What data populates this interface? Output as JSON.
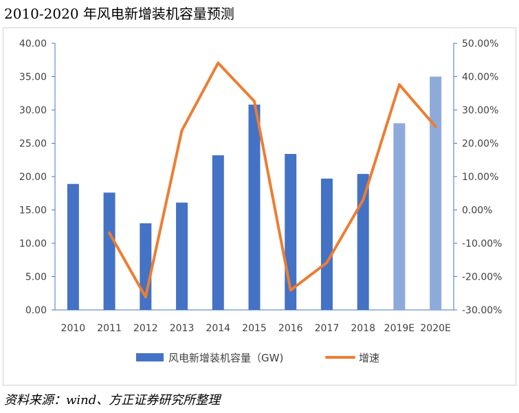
{
  "title": "2010-2020 年风电新增装机容量预测",
  "source": "资料来源：wind、方正证券研究所整理",
  "chart_data": {
    "type": "bar",
    "title": "2010-2020 年风电新增装机容量预测",
    "categories": [
      "2010",
      "2011",
      "2012",
      "2013",
      "2014",
      "2015",
      "2016",
      "2017",
      "2018",
      "2019E",
      "2020E"
    ],
    "series": [
      {
        "name": "风电新增装机容量（GW)",
        "type": "bar",
        "axis": "left",
        "values": [
          18.9,
          17.6,
          13.0,
          16.1,
          23.2,
          30.8,
          23.4,
          19.7,
          20.4,
          28.0,
          35.0
        ],
        "color": "#4472c4",
        "forecast_color": "#8eaadb"
      },
      {
        "name": "增速",
        "type": "line",
        "axis": "right",
        "values": [
          null,
          -6.9,
          -26.1,
          23.8,
          44.1,
          32.6,
          -24.1,
          -15.8,
          3.0,
          37.6,
          25.0
        ],
        "color": "#ed7d31"
      }
    ],
    "yleft": {
      "min": 0,
      "max": 40,
      "ticks": [
        "0.00",
        "5.00",
        "10.00",
        "15.00",
        "20.00",
        "25.00",
        "30.00",
        "35.00",
        "40.00"
      ]
    },
    "yright": {
      "min": -30,
      "max": 50,
      "ticks": [
        "-30.00%",
        "-20.00%",
        "-10.00%",
        "0.00%",
        "10.00%",
        "20.00%",
        "30.00%",
        "40.00%",
        "50.00%"
      ]
    },
    "legend_position": "bottom",
    "grid": false
  }
}
